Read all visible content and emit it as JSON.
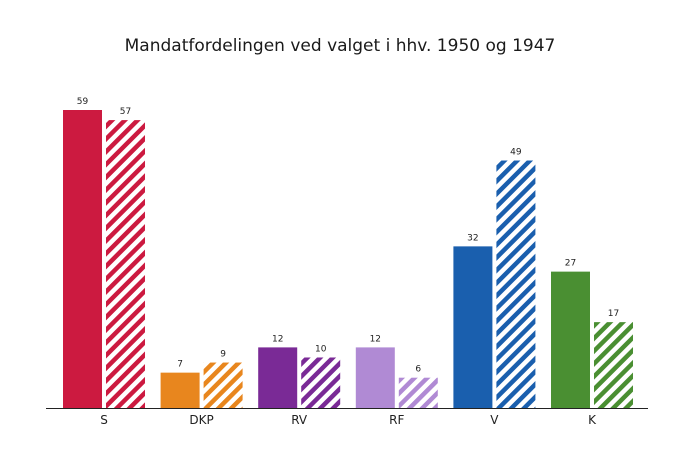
{
  "chart_data": {
    "type": "bar",
    "title": "Mandatfordelingen ved valget i hhv. 1950 og 1947",
    "xlabel": "",
    "ylabel": "",
    "ylim": [
      0,
      60
    ],
    "grid": false,
    "categories": [
      "S",
      "DKP",
      "RV",
      "RF",
      "V",
      "K"
    ],
    "colors": [
      "#cc1a40",
      "#e8861e",
      "#7a2a96",
      "#b08ad4",
      "#1a5fae",
      "#4a8f32"
    ],
    "series": [
      {
        "style": "solid",
        "values": [
          59,
          7,
          12,
          12,
          32,
          27
        ]
      },
      {
        "style": "hatched",
        "values": [
          57,
          9,
          10,
          6,
          49,
          17
        ]
      }
    ]
  }
}
